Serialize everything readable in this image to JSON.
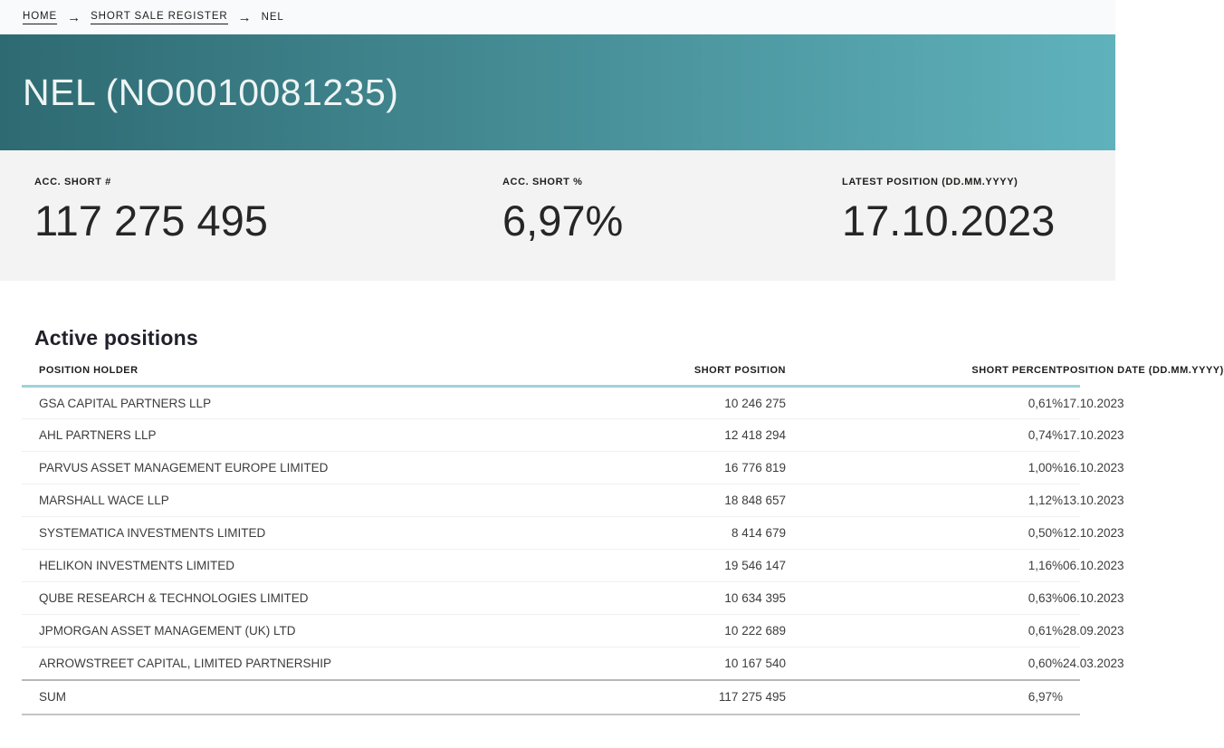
{
  "breadcrumb": {
    "separator": "→",
    "items": [
      {
        "label": "HOME",
        "link": true
      },
      {
        "label": "SHORT SALE REGISTER",
        "link": true
      },
      {
        "label": "NEL",
        "link": false
      }
    ]
  },
  "header": {
    "title": "NEL (NO0010081235)"
  },
  "stats": [
    {
      "label": "ACC. SHORT #",
      "value": "117 275 495"
    },
    {
      "label": "ACC. SHORT %",
      "value": "6,97%"
    },
    {
      "label": "LATEST POSITION (DD.MM.YYYY)",
      "value": "17.10.2023"
    }
  ],
  "table": {
    "title": "Active positions",
    "columns": [
      "POSITION HOLDER",
      "SHORT POSITION",
      "SHORT PERCENT",
      "POSITION DATE (DD.MM.YYYY)"
    ],
    "rows": [
      [
        "GSA CAPITAL PARTNERS LLP",
        "10 246 275",
        "0,61%",
        "17.10.2023"
      ],
      [
        "AHL PARTNERS LLP",
        "12 418 294",
        "0,74%",
        "17.10.2023"
      ],
      [
        "PARVUS ASSET MANAGEMENT EUROPE LIMITED",
        "16 776 819",
        "1,00%",
        "16.10.2023"
      ],
      [
        "MARSHALL WACE LLP",
        "18 848 657",
        "1,12%",
        "13.10.2023"
      ],
      [
        "SYSTEMATICA INVESTMENTS LIMITED",
        "8 414 679",
        "0,50%",
        "12.10.2023"
      ],
      [
        "HELIKON INVESTMENTS LIMITED",
        "19 546 147",
        "1,16%",
        "06.10.2023"
      ],
      [
        "QUBE RESEARCH & TECHNOLOGIES LIMITED",
        "10 634 395",
        "0,63%",
        "06.10.2023"
      ],
      [
        "JPMORGAN ASSET MANAGEMENT (UK) LTD",
        "10 222 689",
        "0,61%",
        "28.09.2023"
      ],
      [
        "ARROWSTREET CAPITAL, LIMITED PARTNERSHIP",
        "10 167 540",
        "0,60%",
        "24.03.2023"
      ]
    ],
    "sum_row": [
      "SUM",
      "117 275 495",
      "6,97%",
      ""
    ]
  },
  "colors": {
    "banner_gradient_left": "#2e6a72",
    "banner_gradient_right": "#5fb2bc",
    "breadcrumb_background": "#f8fafb",
    "stats_background": "#f3f3f3",
    "table_header_underline": "#9ed2d9",
    "sum_row_border": "#b9b9b9",
    "text_dark": "#1d1d1b"
  }
}
